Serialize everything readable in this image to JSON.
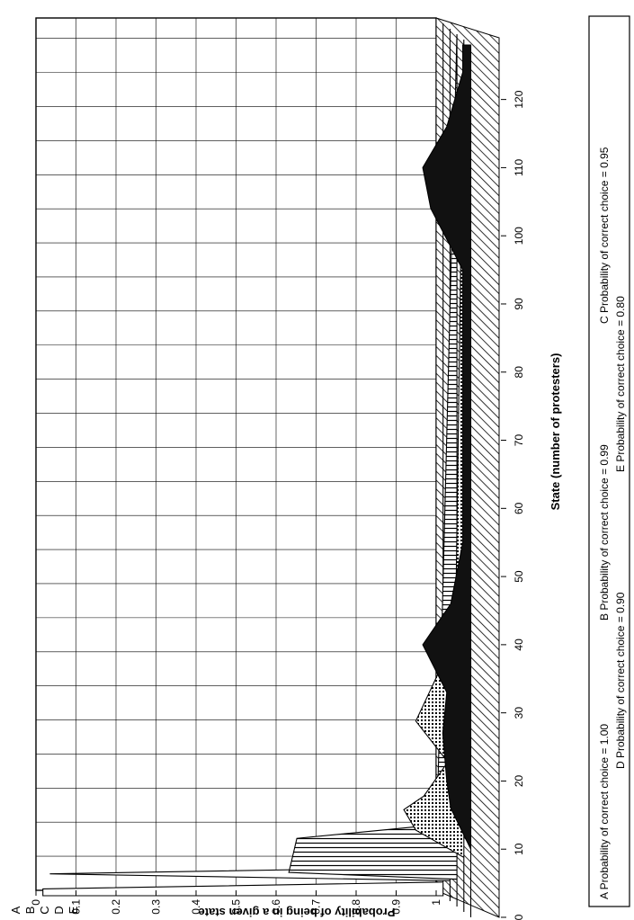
{
  "chart_data": {
    "type": "area",
    "title": "",
    "xlabel": "State (number of protesters)",
    "ylabel": "Probability of being in a given state",
    "xlim": [
      0,
      128
    ],
    "ylim": [
      0,
      1
    ],
    "x_ticks": [
      "0",
      "10",
      "20",
      "30",
      "40",
      "50",
      "60",
      "70",
      "80",
      "90",
      "100",
      "110",
      "120"
    ],
    "y_ticks": [
      "0",
      "0.1",
      "0.2",
      "0.3",
      "0.4",
      "0.5",
      "0.6",
      "0.7",
      "0.8",
      "0.9",
      "1"
    ],
    "legend": {
      "placement": "bottom",
      "entries": [
        "A  Probability of correct choice = 1.00",
        "B  Probability of correct choice = 0.99",
        "C  Probability of correct choice = 0.95",
        "D  Probability of correct choice = 0.90",
        "E  Probability of correct choice = 0.80"
      ]
    },
    "series": [
      {
        "name": "A",
        "label": "A",
        "points": [
          [
            0,
            1.0
          ],
          [
            1,
            1.0
          ],
          [
            2,
            0
          ],
          [
            128,
            0
          ]
        ]
      },
      {
        "name": "B",
        "label": "B",
        "points": [
          [
            0,
            0
          ],
          [
            3,
            0
          ],
          [
            4,
            1.0
          ],
          [
            5,
            0
          ],
          [
            128,
            0
          ]
        ]
      },
      {
        "name": "C",
        "label": "C",
        "points": [
          [
            0,
            0
          ],
          [
            4,
            0
          ],
          [
            5,
            0.42
          ],
          [
            10,
            0.4
          ],
          [
            12,
            0.05
          ],
          [
            128,
            0
          ]
        ]
      },
      {
        "name": "D",
        "label": "D",
        "points": [
          [
            0,
            0
          ],
          [
            8,
            0
          ],
          [
            12,
            0.12
          ],
          [
            15,
            0.15
          ],
          [
            17,
            0.1
          ],
          [
            22,
            0.04
          ],
          [
            28,
            0.12
          ],
          [
            33,
            0.08
          ],
          [
            38,
            0.04
          ],
          [
            45,
            0.02
          ],
          [
            128,
            0
          ]
        ]
      },
      {
        "name": "E",
        "label": "E",
        "points": [
          [
            0,
            0
          ],
          [
            10,
            0
          ],
          [
            16,
            0.05
          ],
          [
            20,
            0.06
          ],
          [
            27,
            0.07
          ],
          [
            33,
            0.06
          ],
          [
            40,
            0.12
          ],
          [
            46,
            0.05
          ],
          [
            55,
            0.02
          ],
          [
            95,
            0.02
          ],
          [
            104,
            0.1
          ],
          [
            110,
            0.12
          ],
          [
            116,
            0.06
          ],
          [
            124,
            0.02
          ],
          [
            128,
            0.02
          ]
        ]
      }
    ]
  }
}
